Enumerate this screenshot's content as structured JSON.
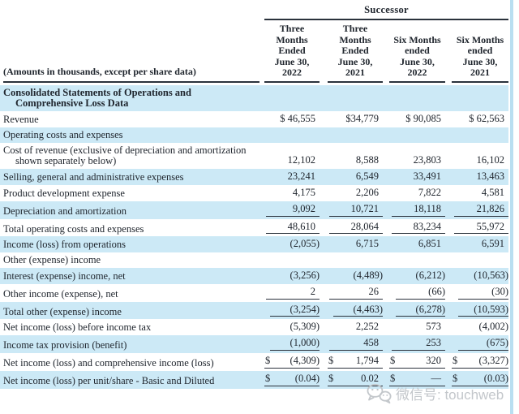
{
  "header": {
    "group_label": "Successor",
    "amounts_note": "(Amounts in thousands, except per share data)",
    "columns": [
      {
        "lines": [
          "Three",
          "Months",
          "Ended",
          "June 30,",
          "2022"
        ]
      },
      {
        "lines": [
          "Three",
          "Months",
          "Ended",
          "June 30,",
          "2021"
        ]
      },
      {
        "lines": [
          "Six Months",
          "ended",
          "June 30,",
          "2022"
        ]
      },
      {
        "lines": [
          "Six Months",
          "ended",
          "June 30,",
          "2021"
        ]
      }
    ]
  },
  "rows": [
    {
      "label": "Consolidated Statements of Operations and",
      "label2": "Comprehensive Loss Data",
      "bold": true,
      "bg": "blue",
      "underline": false,
      "cells": null
    },
    {
      "label": "Revenue",
      "bold": false,
      "bg": "white",
      "underline": false,
      "cells": [
        "$ 46,555",
        "$34,779",
        "$ 90,085",
        "$ 62,563"
      ]
    },
    {
      "label": "Operating costs and expenses",
      "bold": false,
      "bg": "blue",
      "underline": false,
      "cells": null
    },
    {
      "label": "Cost of revenue (exclusive of depreciation and amortization",
      "label2": "shown separately below)",
      "bold": false,
      "bg": "white",
      "underline": false,
      "cells": [
        "12,102",
        "8,588",
        "23,803",
        "16,102"
      ]
    },
    {
      "label": "Selling, general and administrative expenses",
      "bold": false,
      "bg": "blue",
      "underline": false,
      "cells": [
        "23,241",
        "6,549",
        "33,491",
        "13,463"
      ]
    },
    {
      "label": "Product development expense",
      "bold": false,
      "bg": "white",
      "underline": false,
      "cells": [
        "4,175",
        "2,206",
        "7,822",
        "4,581"
      ]
    },
    {
      "label": "Depreciation and amortization",
      "bold": false,
      "bg": "blue",
      "underline": true,
      "cells": [
        "9,092",
        "10,721",
        "18,118",
        "21,826"
      ]
    },
    {
      "label": "Total operating costs and expenses",
      "bold": false,
      "bg": "white",
      "underline": true,
      "cells": [
        "48,610",
        "28,064",
        "83,234",
        "55,972"
      ]
    },
    {
      "label": "Income (loss) from operations",
      "bold": false,
      "bg": "blue",
      "underline": false,
      "cells": [
        "(2,055)",
        "6,715",
        "6,851",
        "6,591"
      ]
    },
    {
      "label": "Other (expense) income",
      "bold": false,
      "bg": "white",
      "underline": false,
      "cells": null
    },
    {
      "label": "Interest (expense) income, net",
      "bold": false,
      "bg": "blue",
      "underline": false,
      "cells": [
        "(3,256)",
        "(4,489)",
        "(6,212)",
        "(10,563)"
      ]
    },
    {
      "label": "Other income (expense), net",
      "bold": false,
      "bg": "white",
      "underline": true,
      "cells": [
        "2",
        "26",
        "(66)",
        "(30)"
      ]
    },
    {
      "label": "Total other (expense) income",
      "bold": false,
      "bg": "blue",
      "underline": true,
      "cells": [
        "(3,254)",
        "(4,463)",
        "(6,278)",
        "(10,593)"
      ]
    },
    {
      "label": "Net income (loss) before income tax",
      "bold": false,
      "bg": "white",
      "underline": false,
      "cells": [
        "(5,309)",
        "2,252",
        "573",
        "(4,002)"
      ]
    },
    {
      "label": "Income tax provision (benefit)",
      "bold": false,
      "bg": "blue",
      "underline": true,
      "cells": [
        "(1,000)",
        "458",
        "253",
        "(675)"
      ]
    },
    {
      "label": "Net income (loss) and comprehensive income (loss)",
      "bold": false,
      "bg": "white",
      "underline": true,
      "cells": [
        {
          "d": "$",
          "v": "(4,309)"
        },
        {
          "d": "$",
          "v": "1,794"
        },
        {
          "d": "$",
          "v": "320"
        },
        {
          "d": "$",
          "v": "(3,327)"
        }
      ]
    },
    {
      "label": "Net income (loss) per unit/share - Basic and Diluted",
      "bold": false,
      "bg": "blue",
      "underline": true,
      "cells": [
        {
          "d": "$",
          "v": "(0.04)"
        },
        {
          "d": "$",
          "v": "0.02"
        },
        {
          "d": "$",
          "v": "—"
        },
        {
          "d": "$",
          "v": "(0.03)"
        }
      ]
    }
  ],
  "watermark": {
    "icon": "wechat-icon",
    "text": "微信号: touchweb"
  },
  "colors": {
    "row_alt": "#cce9f6",
    "text": "#20262e",
    "rule": "#2a323c",
    "watermark": "#c3c7cb",
    "right_bar": "#b9dff1"
  }
}
